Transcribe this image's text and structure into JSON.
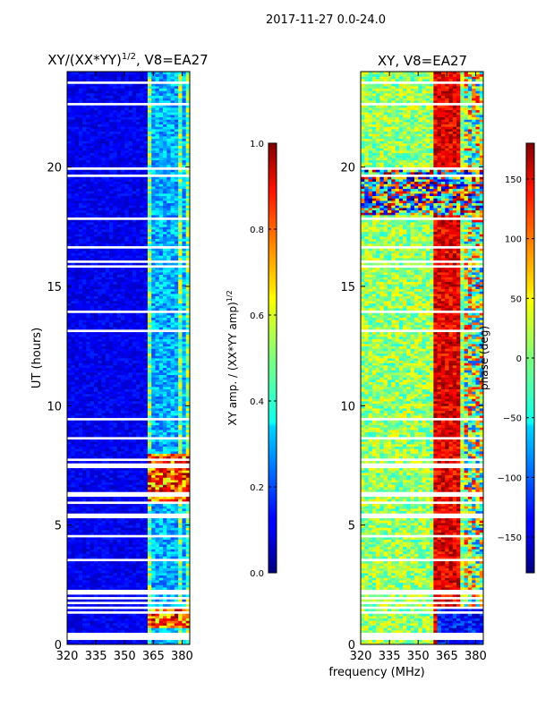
{
  "figure": {
    "suptitle": "2017-11-27 0.0-24.0",
    "xlabel": "frequency (MHz)",
    "ylabel": "UT (hours)"
  },
  "chart_data": [
    {
      "type": "heatmap",
      "title_prefix": "XY/(XX*YY)",
      "title_exponent": "1/2",
      "title_suffix": ", V8=EA27",
      "xlim": [
        320,
        384
      ],
      "x_ticks": [
        "320",
        "335",
        "350",
        "365",
        "380"
      ],
      "x_tick_values": [
        320,
        335,
        350,
        365,
        380
      ],
      "ylim": [
        0,
        24
      ],
      "y_ticks": [
        "0",
        "5",
        "10",
        "15",
        "20"
      ],
      "y_tick_values": [
        0,
        5,
        10,
        15,
        20
      ],
      "colorbar": {
        "label_prefix": "XY amp. / (XX*YY amp)",
        "label_exponent": "1/2",
        "range": [
          0.0,
          1.0
        ],
        "ticks": [
          "0.0",
          "0.2",
          "0.4",
          "0.6",
          "0.8",
          "1.0"
        ],
        "tick_values": [
          0.0,
          0.2,
          0.4,
          0.6,
          0.8,
          1.0
        ],
        "colormap": "jet"
      }
    },
    {
      "type": "heatmap",
      "title": "XY, V8=EA27",
      "xlim": [
        320,
        384
      ],
      "x_ticks": [
        "320",
        "335",
        "350",
        "365",
        "380"
      ],
      "x_tick_values": [
        320,
        335,
        350,
        365,
        380
      ],
      "ylim": [
        0,
        24
      ],
      "y_ticks": [
        "0",
        "5",
        "10",
        "15",
        "20"
      ],
      "y_tick_values": [
        0,
        5,
        10,
        15,
        20
      ],
      "colorbar": {
        "label": "phase (deg)",
        "range": [
          -180,
          180
        ],
        "ticks": [
          "−150",
          "−100",
          "−50",
          "0",
          "50",
          "100",
          "150"
        ],
        "tick_values": [
          -150,
          -100,
          -50,
          0,
          50,
          100,
          150
        ],
        "colormap": "jet"
      }
    }
  ]
}
